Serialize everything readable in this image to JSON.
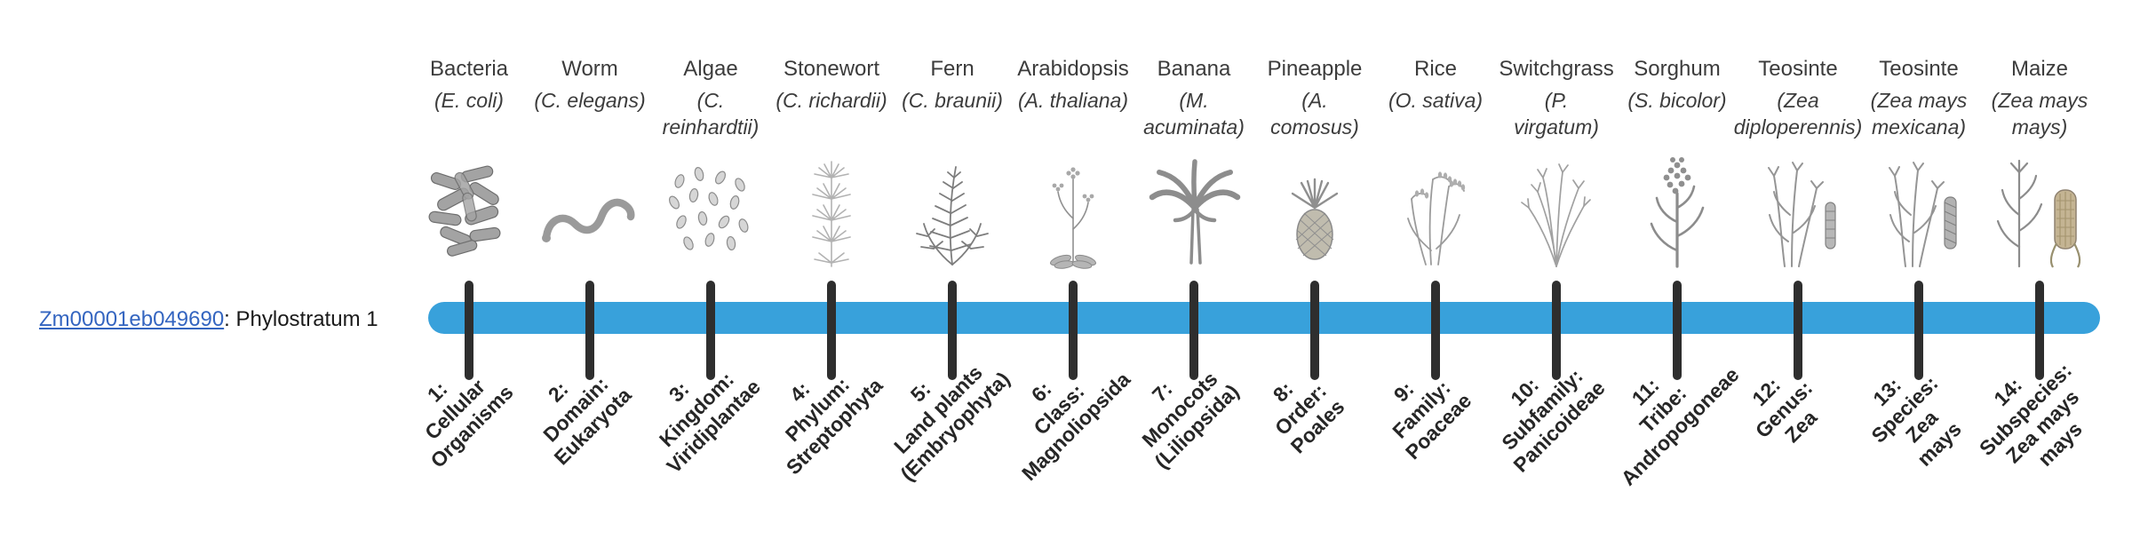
{
  "colors": {
    "bar": "#38A1DB",
    "tick": "#2e2e2e",
    "link": "#3465c0",
    "text": "#3a3a3a"
  },
  "gene_label": {
    "link_text": "Zm00001eb049690",
    "suffix": ": Phylostratum 1"
  },
  "columns": [
    {
      "common_name": "Bacteria",
      "scientific_name": "(E. coli)",
      "icon": "bacteria-illustration",
      "stratum_label": "1:\nCellular\nOrganisms"
    },
    {
      "common_name": "Worm",
      "scientific_name": "(C. elegans)",
      "icon": "worm-illustration",
      "stratum_label": "2:\nDomain:\nEukaryota"
    },
    {
      "common_name": "Algae",
      "scientific_name": "(C.\nreinhardtii)",
      "icon": "algae-illustration",
      "stratum_label": "3:\nKingdom:\nViridiplantae"
    },
    {
      "common_name": "Stonewort",
      "scientific_name": "(C. richardii)",
      "icon": "stonewort-illustration",
      "stratum_label": "4:\nPhylum:\nStreptophyta"
    },
    {
      "common_name": "Fern",
      "scientific_name": "(C. braunii)",
      "icon": "fern-illustration",
      "stratum_label": "5:\nLand plants\n(Embryophyta)"
    },
    {
      "common_name": "Arabidopsis",
      "scientific_name": "(A. thaliana)",
      "icon": "arabidopsis-illustration",
      "stratum_label": "6:\nClass:\nMagnoliopsida"
    },
    {
      "common_name": "Banana",
      "scientific_name": "(M.\nacuminata)",
      "icon": "banana-illustration",
      "stratum_label": "7:\nMonocots\n(Liliopsida)"
    },
    {
      "common_name": "Pineapple",
      "scientific_name": "(A.\ncomosus)",
      "icon": "pineapple-illustration",
      "stratum_label": "8:\nOrder:\nPoales"
    },
    {
      "common_name": "Rice",
      "scientific_name": "(O. sativa)",
      "icon": "rice-illustration",
      "stratum_label": "9:\nFamily:\nPoaceae"
    },
    {
      "common_name": "Switchgrass",
      "scientific_name": "(P.\nvirgatum)",
      "icon": "switchgrass-illustration",
      "stratum_label": "10:\nSubfamily:\nPanicoideae"
    },
    {
      "common_name": "Sorghum",
      "scientific_name": "(S. bicolor)",
      "icon": "sorghum-illustration",
      "stratum_label": "11:\nTribe:\nAndropogoneae"
    },
    {
      "common_name": "Teosinte",
      "scientific_name": "(Zea\ndiploperennis)",
      "icon": "teosinte-diploperennis-illustration",
      "stratum_label": "12:\nGenus:\nZea"
    },
    {
      "common_name": "Teosinte",
      "scientific_name": "(Zea mays\nmexicana)",
      "icon": "teosinte-mexicana-illustration",
      "stratum_label": "13:\nSpecies:\nZea\nmays"
    },
    {
      "common_name": "Maize",
      "scientific_name": "(Zea mays\nmays)",
      "icon": "maize-illustration",
      "stratum_label": "14:\nSubspecies:\nZea mays\nmays"
    }
  ]
}
